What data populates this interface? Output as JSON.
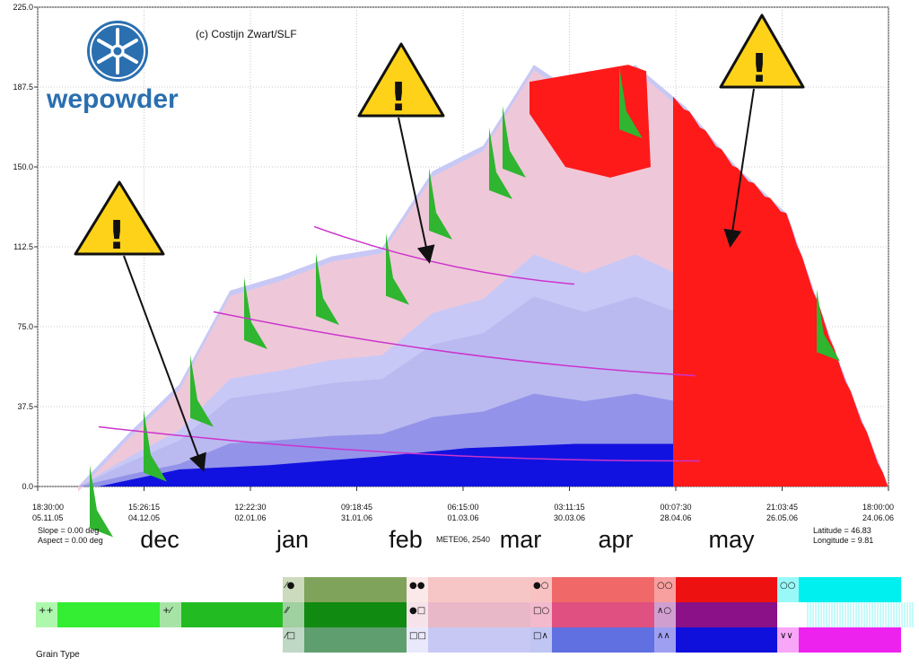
{
  "copyright": "(c) Costijn Zwart/SLF",
  "brand": {
    "name": "wepowder",
    "logo_icon": "snowflake-icon",
    "color": "#2a6fb0"
  },
  "chart_data": {
    "type": "area",
    "title": "",
    "xlabel": "",
    "ylabel": "",
    "ylim": [
      0,
      225
    ],
    "y_ticks": [
      "0.0",
      "37.5",
      "75.0",
      "112.5",
      "150.0",
      "187.5",
      "225.0"
    ],
    "x_ticks": [
      {
        "time": "18:30:00",
        "date": "05.11.05"
      },
      {
        "time": "15:26:15",
        "date": "04.12.05"
      },
      {
        "time": "12:22:30",
        "date": "02.01.06"
      },
      {
        "time": "09:18:45",
        "date": "31.01.06"
      },
      {
        "time": "06:15:00",
        "date": "01.03.06"
      },
      {
        "time": "03:11:15",
        "date": "30.03.06"
      },
      {
        "time": "00:07:30",
        "date": "28.04.06"
      },
      {
        "time": "21:03:45",
        "date": "26.05.06"
      },
      {
        "time": "18:00:00",
        "date": "24.06.06"
      }
    ],
    "months": [
      "dec",
      "jan",
      "feb",
      "mar",
      "apr",
      "may"
    ],
    "grid": true,
    "snow_height": {
      "x": [
        "05.11.05",
        "20.11.05",
        "04.12.05",
        "18.12.05",
        "02.01.06",
        "16.01.06",
        "31.01.06",
        "15.02.06",
        "01.03.06",
        "15.03.06",
        "30.03.06",
        "14.04.06",
        "28.04.06",
        "12.05.06",
        "26.05.06",
        "10.06.06",
        "24.06.06"
      ],
      "y": [
        0,
        25,
        48,
        92,
        99,
        108,
        112,
        148,
        160,
        198,
        182,
        198,
        178,
        150,
        128,
        60,
        0
      ]
    },
    "station": "METE06, 2540",
    "slope": "Slope = 0.00 deg",
    "aspect": "Aspect = 0.00 deg",
    "latitude": "Latitude = 46.83",
    "longitude": "Longitude = 9.81",
    "legend_title": "Grain Type",
    "legend": [
      {
        "symbol": "++",
        "color": "#33ee33"
      },
      {
        "symbol": "+⁄",
        "color": "#22bb22"
      },
      {
        "symbol": "⁄●",
        "color": "#7fa35a"
      },
      {
        "symbol": "⁄⁄",
        "color": "#108a10"
      },
      {
        "symbol": "⁄□",
        "color": "#5f9f6f"
      },
      {
        "symbol": "●●",
        "color": "#f6c6c6"
      },
      {
        "symbol": "●□",
        "color": "#e8b8c8"
      },
      {
        "symbol": "□□",
        "color": "#c8c8f4"
      },
      {
        "symbol": "●○",
        "color": "#f06868"
      },
      {
        "symbol": "□○",
        "color": "#e05080"
      },
      {
        "symbol": "□∧",
        "color": "#6070e0"
      },
      {
        "symbol": "○○",
        "color": "#ee1111"
      },
      {
        "symbol": "∧○",
        "color": "#8a1188"
      },
      {
        "symbol": "∧∧",
        "color": "#1010dd"
      },
      {
        "symbol": "○○",
        "color": "#00f0f0"
      },
      {
        "symbol": "∨∨",
        "color": "#ee22ee"
      }
    ],
    "colors": {
      "new_snow": "#2fb52f",
      "faceted": "#c8c8f6",
      "rounded": "#f4c8d4",
      "melt": "#ff1a1a",
      "depth_hoar": "#1212e0",
      "crust_line": "#cc33cc"
    },
    "annotations": [
      {
        "type": "warning",
        "icon": "warning-icon"
      },
      {
        "type": "warning",
        "icon": "warning-icon"
      },
      {
        "type": "warning",
        "icon": "warning-icon"
      }
    ]
  }
}
